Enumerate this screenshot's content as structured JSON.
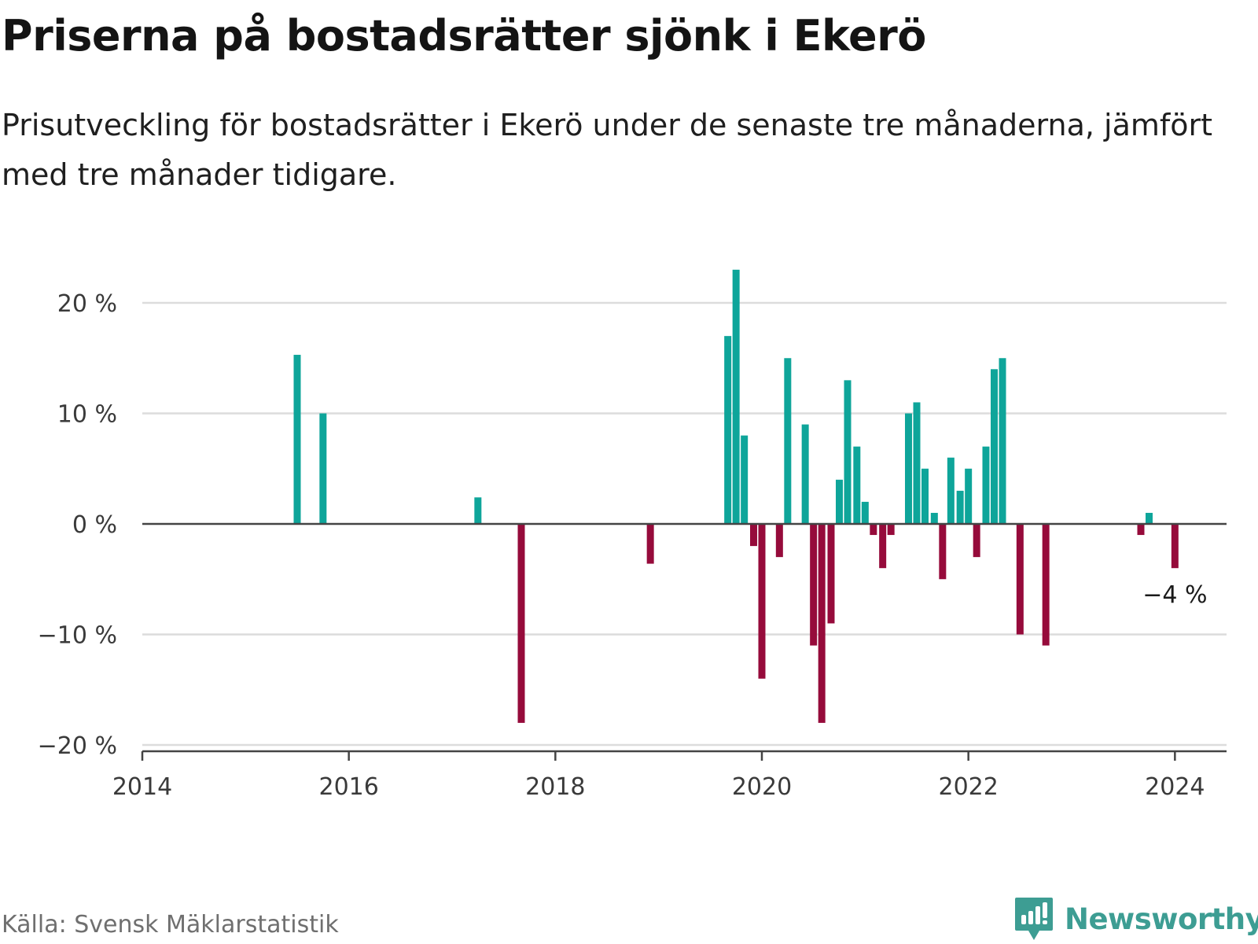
{
  "title": "Priserna på bostadsrätter sjönk i Ekerö",
  "subtitle": "Prisutveckling för bostadsrätter i Ekerö under de senaste tre månaderna, jämfört med tre månader tidigare.",
  "source": "Källa: Svensk Mäklarstatistik",
  "brand": {
    "name": "Newsworthy",
    "icon": "newsworthy-logo-icon",
    "color": "#3d9d93"
  },
  "colors": {
    "positive": "#0ea59a",
    "negative": "#960b3b",
    "gridline": "#dcdcdc",
    "axis": "#444444"
  },
  "chart_data": {
    "type": "bar",
    "xlabel": "",
    "ylabel": "",
    "xlim": [
      2014,
      2024.5
    ],
    "ylim": [
      -20,
      23
    ],
    "x_ticks": [
      2014,
      2016,
      2018,
      2020,
      2022,
      2024
    ],
    "x_tick_labels": [
      "2014",
      "2016",
      "2018",
      "2020",
      "2022",
      "2024"
    ],
    "y_ticks": [
      -20,
      -10,
      0,
      10,
      20
    ],
    "y_tick_labels": [
      "−20 %",
      "−10 %",
      "0 %",
      "10 %",
      "20 %"
    ],
    "grid": true,
    "series": [
      {
        "name": "Prisutveckling",
        "points": [
          {
            "x": 2015.5,
            "y": 15.3
          },
          {
            "x": 2015.75,
            "y": 10.0
          },
          {
            "x": 2017.25,
            "y": 2.4
          },
          {
            "x": 2017.67,
            "y": -18.0
          },
          {
            "x": 2018.92,
            "y": -3.6
          },
          {
            "x": 2019.67,
            "y": 17.0
          },
          {
            "x": 2019.75,
            "y": 23.0
          },
          {
            "x": 2019.83,
            "y": 8.0
          },
          {
            "x": 2019.92,
            "y": -2.0
          },
          {
            "x": 2020.0,
            "y": -14.0
          },
          {
            "x": 2020.17,
            "y": -3.0
          },
          {
            "x": 2020.25,
            "y": 15.0
          },
          {
            "x": 2020.42,
            "y": 9.0
          },
          {
            "x": 2020.5,
            "y": -11.0
          },
          {
            "x": 2020.58,
            "y": -18.0
          },
          {
            "x": 2020.67,
            "y": -9.0
          },
          {
            "x": 2020.75,
            "y": 4.0
          },
          {
            "x": 2020.83,
            "y": 13.0
          },
          {
            "x": 2020.92,
            "y": 7.0
          },
          {
            "x": 2021.0,
            "y": 2.0
          },
          {
            "x": 2021.08,
            "y": -1.0
          },
          {
            "x": 2021.17,
            "y": -4.0
          },
          {
            "x": 2021.25,
            "y": -1.0
          },
          {
            "x": 2021.42,
            "y": 10.0
          },
          {
            "x": 2021.5,
            "y": 11.0
          },
          {
            "x": 2021.58,
            "y": 5.0
          },
          {
            "x": 2021.67,
            "y": 1.0
          },
          {
            "x": 2021.75,
            "y": -5.0
          },
          {
            "x": 2021.83,
            "y": 6.0
          },
          {
            "x": 2021.92,
            "y": 3.0
          },
          {
            "x": 2022.0,
            "y": 5.0
          },
          {
            "x": 2022.08,
            "y": -3.0
          },
          {
            "x": 2022.17,
            "y": 7.0
          },
          {
            "x": 2022.25,
            "y": 14.0
          },
          {
            "x": 2022.33,
            "y": 15.0
          },
          {
            "x": 2022.5,
            "y": -10.0
          },
          {
            "x": 2022.75,
            "y": -11.0
          },
          {
            "x": 2023.67,
            "y": -1.0
          },
          {
            "x": 2023.75,
            "y": 1.0
          },
          {
            "x": 2024.0,
            "y": -4.0
          }
        ]
      }
    ],
    "annotations": [
      {
        "x": 2024.0,
        "y": -4.0,
        "text": "−4 %"
      }
    ]
  }
}
